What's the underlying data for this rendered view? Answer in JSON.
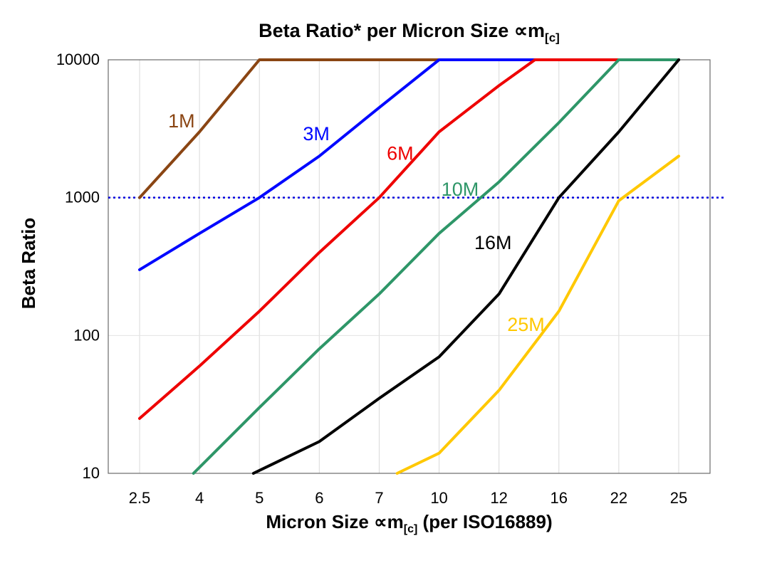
{
  "title": {
    "pre": "Beta Ratio* per Micron Size ∝m",
    "sub": "[c]"
  },
  "y_axis_title": "Beta Ratio",
  "x_axis_title": {
    "pre": "Micron Size ∝m",
    "sub": "[c]",
    "post": " (per ISO16889)"
  },
  "chart_data": {
    "type": "line",
    "title": "Beta Ratio* per Micron Size ∝m[c]",
    "xlabel": "Micron Size ∝m[c] (per ISO16889)",
    "ylabel": "Beta Ratio",
    "x_categories": [
      "2.5",
      "4",
      "5",
      "6",
      "7",
      "10",
      "12",
      "16",
      "22",
      "25"
    ],
    "y_scale": "log",
    "y_ticks": [
      "10",
      "100",
      "1000",
      "10000"
    ],
    "ylim": [
      10,
      10000
    ],
    "grid_horizontal_values": [
      100,
      1000
    ],
    "grid_vertical": true,
    "legend_position": "labels-on-lines",
    "reference_line": {
      "value": 1000,
      "color": "#0000dd",
      "style": "dotted"
    },
    "series": [
      {
        "name": "1M",
        "color": "#8a4513",
        "points": [
          [
            0,
            1000
          ],
          [
            1,
            3000
          ],
          [
            2,
            10000
          ],
          [
            9,
            10000
          ]
        ],
        "label_pos": [
          0.7,
          3600
        ]
      },
      {
        "name": "3M",
        "color": "#0008ff",
        "points": [
          [
            0,
            300
          ],
          [
            1,
            550
          ],
          [
            2,
            1000
          ],
          [
            3,
            2000
          ],
          [
            4,
            4500
          ],
          [
            5,
            10000
          ],
          [
            9,
            10000
          ]
        ],
        "label_pos": [
          2.95,
          2900
        ]
      },
      {
        "name": "6M",
        "color": "#ee0000",
        "points": [
          [
            0,
            25
          ],
          [
            1,
            60
          ],
          [
            2,
            150
          ],
          [
            3,
            400
          ],
          [
            4,
            1000
          ],
          [
            5,
            3000
          ],
          [
            6,
            6500
          ],
          [
            6.6,
            10000
          ],
          [
            9,
            10000
          ]
        ],
        "label_pos": [
          4.35,
          2100
        ]
      },
      {
        "name": "10M",
        "color": "#2e9668",
        "points": [
          [
            0.9,
            10
          ],
          [
            2,
            30
          ],
          [
            3,
            80
          ],
          [
            4,
            200
          ],
          [
            5,
            550
          ],
          [
            6,
            1300
          ],
          [
            7,
            3500
          ],
          [
            8,
            10000
          ],
          [
            9,
            10000
          ]
        ],
        "label_pos": [
          5.35,
          1150
        ]
      },
      {
        "name": "16M",
        "color": "#000000",
        "points": [
          [
            1.9,
            10
          ],
          [
            3,
            17
          ],
          [
            4,
            35
          ],
          [
            5,
            70
          ],
          [
            6,
            200
          ],
          [
            7,
            1000
          ],
          [
            8,
            3000
          ],
          [
            9,
            10000
          ]
        ],
        "label_pos": [
          5.9,
          470
        ]
      },
      {
        "name": "25M",
        "color": "#ffc800",
        "points": [
          [
            4.3,
            10
          ],
          [
            5,
            14
          ],
          [
            6,
            40
          ],
          [
            7,
            150
          ],
          [
            8,
            950
          ],
          [
            9,
            2000
          ]
        ],
        "label_pos": [
          6.45,
          120
        ]
      }
    ]
  }
}
